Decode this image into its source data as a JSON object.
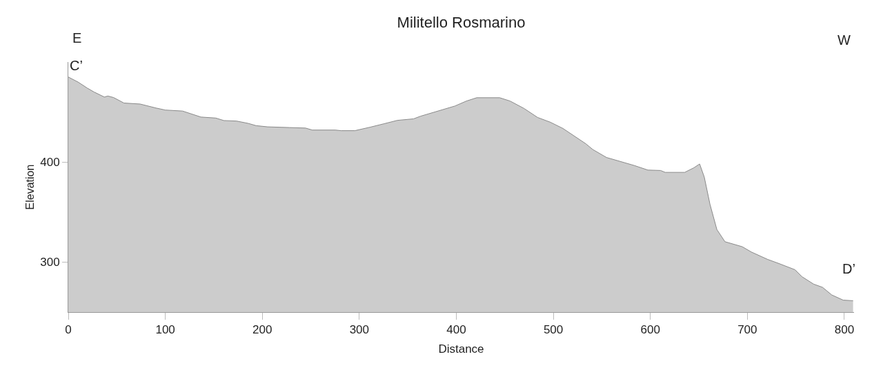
{
  "chart_data": {
    "type": "area",
    "title": "Militello Rosmarino",
    "xlabel": "Distance",
    "ylabel": "Elevation",
    "annotations": [
      "E",
      "W",
      "C’",
      "D’"
    ],
    "x": [
      0,
      10,
      19.5,
      26.6,
      37.2,
      40.8,
      46.7,
      57.4,
      74,
      90.5,
      100,
      117.8,
      136.7,
      152,
      160.4,
      173.4,
      185.3,
      193.6,
      205.4,
      228,
      244.5,
      251.6,
      275.3,
      281.2,
      295.4,
      310.9,
      325.1,
      339.3,
      355.9,
      363,
      398.5,
      410.4,
      421,
      444.7,
      455.4,
      469.6,
      483.8,
      497,
      509.9,
      533.5,
      540.6,
      554.8,
      583.3,
      597.5,
      610.5,
      615.3,
      635.4,
      644.9,
      650.8,
      655.6,
      661.5,
      668.6,
      676.9,
      694.7,
      704.1,
      720.7,
      732.5,
      749.1,
      756.2,
      768.3,
      777.5,
      787,
      798.8,
      809
    ],
    "series": [
      {
        "color": "#cccccc",
        "values": [
          485,
          480,
          474,
          470,
          465,
          466,
          464.5,
          459,
          458,
          454,
          452,
          451,
          445,
          444,
          441.5,
          441,
          438.7,
          436.4,
          435.2,
          434.5,
          434,
          432,
          432,
          431.4,
          431.4,
          434.8,
          438.2,
          441.7,
          443.2,
          445.8,
          456,
          461,
          464.3,
          464.3,
          461,
          453.7,
          444.6,
          439.8,
          433.6,
          418.3,
          412.6,
          404.6,
          396.6,
          392,
          391.6,
          389.7,
          389.7,
          394.3,
          398.1,
          385,
          357.7,
          332.5,
          320.4,
          315.4,
          310.1,
          302.8,
          298.6,
          292.4,
          285.5,
          278,
          274.8,
          267.2,
          262,
          261.4
        ]
      }
    ],
    "xlim": [
      0,
      810
    ],
    "xticks": [
      0,
      100,
      200,
      300,
      400,
      500,
      600,
      700,
      800
    ],
    "ylim": [
      250,
      500
    ],
    "yticks": [
      300,
      400
    ],
    "grid": false,
    "marker": "none",
    "line_style": "solid"
  }
}
